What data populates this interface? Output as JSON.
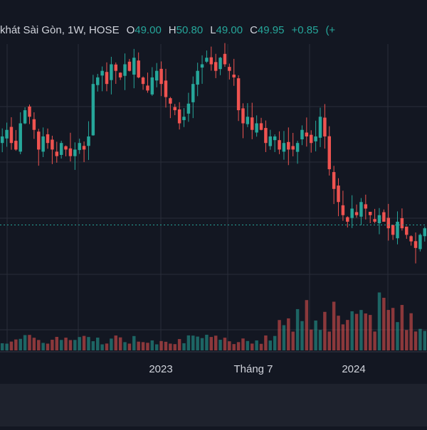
{
  "chart_data": {
    "type": "candlestick",
    "symbol_text": "khát Sài Gòn, 1W, HOSE",
    "ohlc_legend": {
      "o_label": "O",
      "o_value": "49.00",
      "h_label": "H",
      "h_value": "50.80",
      "l_label": "L",
      "l_value": "49.00",
      "c_label": "C",
      "c_value": "49.95",
      "change": "+0.85",
      "change_pct_partial": "(+"
    },
    "x_ticks": [
      {
        "label": "2023",
        "t": 0.0
      },
      {
        "label": "Tháng 7",
        "t": 0.5
      },
      {
        "label": "2024",
        "t": 1.0
      }
    ],
    "y_range": [
      40,
      75
    ],
    "price_line": 48.5,
    "colors": {
      "up": "#26a69a",
      "down": "#ef5350",
      "background": "#131722",
      "grid": "#2a2e39",
      "text": "#d1d4dc"
    },
    "candles_close_path": [
      62,
      63,
      61,
      60,
      64,
      66,
      65,
      63,
      60,
      62,
      61,
      60,
      59,
      61,
      60,
      59,
      60,
      61,
      60,
      62,
      70,
      71,
      72,
      70,
      73,
      72,
      71,
      73,
      72,
      74,
      71,
      70,
      69,
      71,
      72,
      70,
      68,
      67,
      66,
      64,
      65,
      67,
      70,
      72,
      73,
      74,
      73,
      72,
      74,
      73,
      72,
      71,
      66,
      64,
      65,
      63,
      64,
      63,
      61,
      62,
      62,
      60,
      61,
      60,
      60,
      61,
      63,
      62,
      61,
      62,
      65,
      62,
      57,
      54,
      52,
      50,
      49,
      51,
      50,
      52,
      51,
      50,
      49,
      50,
      49,
      48,
      47,
      49,
      48,
      47,
      46,
      45,
      47,
      48
    ]
  },
  "toolbar": {}
}
